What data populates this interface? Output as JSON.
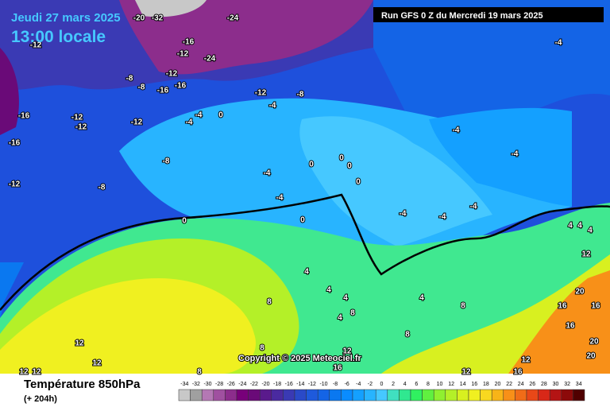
{
  "header": {
    "date": "Jeudi 27 mars 2025",
    "time": "13:00 locale",
    "run": "Run GFS 0 Z du Mercredi 19 mars 2025"
  },
  "footer": {
    "title": "Température 850hPa",
    "lead": "(+ 204h)",
    "copyright": "Copyright © 2025 Meteociel.fr"
  },
  "legend": {
    "ticks": [
      -34,
      -32,
      -30,
      -28,
      -26,
      -24,
      -22,
      -20,
      -18,
      -16,
      -14,
      -12,
      -10,
      -8,
      -6,
      -4,
      -2,
      0,
      2,
      4,
      6,
      8,
      10,
      12,
      14,
      16,
      18,
      20,
      22,
      24,
      26,
      28,
      30,
      32,
      34
    ],
    "colors": [
      "#c8c8c8",
      "#a0a0a0",
      "#b478b4",
      "#a050a0",
      "#8c2d8c",
      "#78007a",
      "#6a0a78",
      "#5a1a8c",
      "#4a2aa0",
      "#3a3ab4",
      "#2a4ac8",
      "#1e5adc",
      "#1464e6",
      "#0a78f0",
      "#0a8cff",
      "#14a0ff",
      "#28b4ff",
      "#46c8ff",
      "#40e0c0",
      "#30e890",
      "#30f060",
      "#60f040",
      "#90f030",
      "#b4f028",
      "#d8f020",
      "#f0f020",
      "#f8d820",
      "#f8b418",
      "#f89018",
      "#f06c18",
      "#e84818",
      "#d82818",
      "#b41414",
      "#8c0a0a",
      "#500000"
    ]
  },
  "map": {
    "labels": [
      -12,
      -12,
      -24,
      -16,
      -8,
      -8,
      -12,
      -16,
      -16,
      -12,
      -12,
      -12,
      -16,
      -16,
      -12,
      -8,
      -8,
      -12,
      -8,
      -4,
      -4,
      -4,
      0,
      -4,
      -4,
      0,
      0,
      0,
      0,
      0,
      0,
      -4,
      -4,
      -4,
      -4,
      -4,
      -4,
      4,
      4,
      4,
      8,
      8,
      4,
      8,
      4,
      8,
      12,
      12,
      12,
      12,
      8,
      12,
      16,
      12,
      16,
      12,
      4,
      4,
      4,
      12,
      16,
      20,
      16,
      20,
      20,
      16,
      8,
      -24,
      -20,
      -32
    ]
  }
}
